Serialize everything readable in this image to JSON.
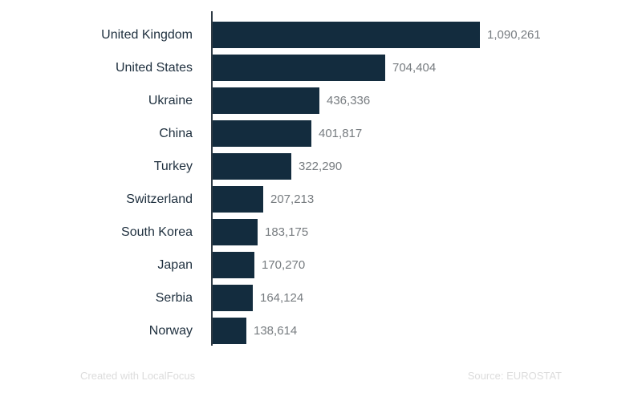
{
  "chart_data": {
    "type": "bar",
    "orientation": "horizontal",
    "title": "",
    "xlabel": "",
    "ylabel": "",
    "grid": false,
    "legend": false,
    "xlim": [
      0,
      1090261
    ],
    "categories": [
      "United Kingdom",
      "United States",
      "Ukraine",
      "China",
      "Turkey",
      "Switzerland",
      "South Korea",
      "Japan",
      "Serbia",
      "Norway"
    ],
    "values": [
      1090261,
      704404,
      436336,
      401817,
      322290,
      207213,
      183175,
      170270,
      164124,
      138614
    ],
    "value_labels": [
      "1,090,261",
      "704,404",
      "436,336",
      "401,817",
      "322,290",
      "207,213",
      "183,175",
      "170,270",
      "164,124",
      "138,614"
    ],
    "colors": {
      "bar": "#132c3e",
      "category_label": "#1e2f3e",
      "value_label": "#777c80",
      "axis": "#2e3a44",
      "background": "#ffffff",
      "footer_text": "#dcdcdc"
    }
  },
  "footer": {
    "credit": "Created with LocalFocus",
    "source": "Source: EUROSTAT"
  }
}
